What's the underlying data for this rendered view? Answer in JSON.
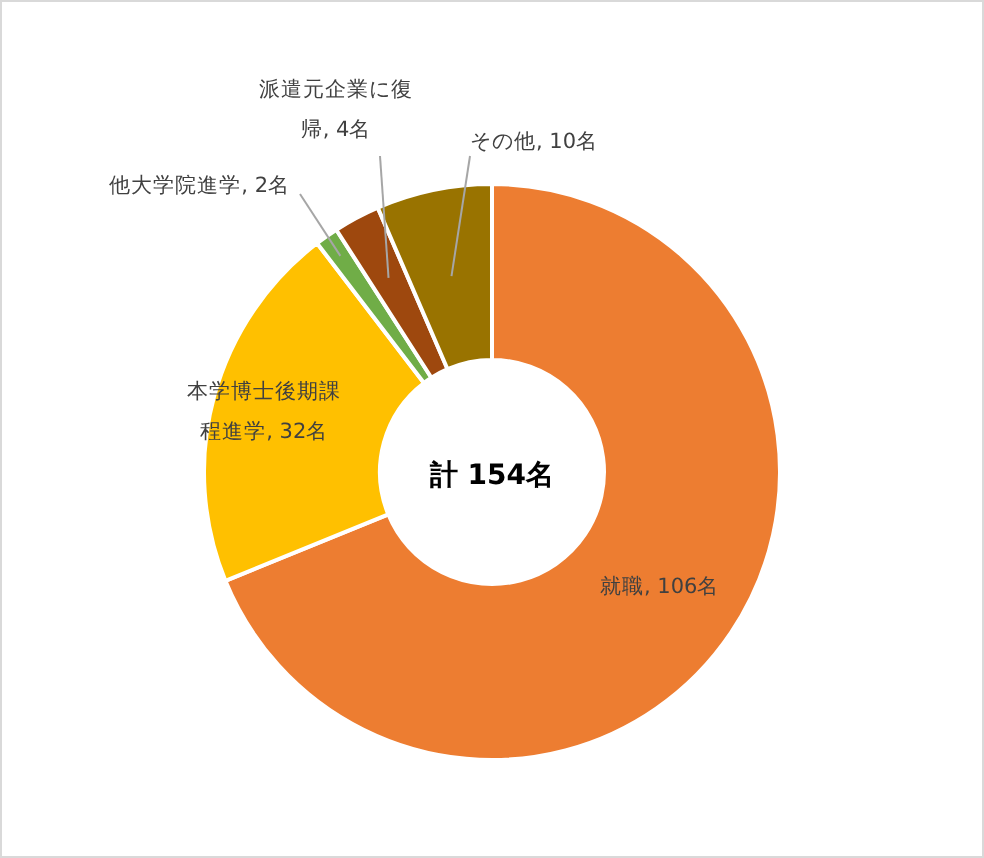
{
  "chart_data": {
    "type": "donut",
    "categories": [
      "就職",
      "本学博士後期課程進学",
      "他大学院進学",
      "派遣元企業に復帰",
      "その他"
    ],
    "values": [
      106,
      32,
      2,
      4,
      10
    ],
    "value_labels": [
      "106名",
      "32名",
      "2名",
      "4名",
      "10名"
    ],
    "colors": [
      "#ed7d31",
      "#ffc000",
      "#70ad47",
      "#9e480e",
      "#997300"
    ],
    "annotations": [
      "計 154名"
    ]
  }
}
